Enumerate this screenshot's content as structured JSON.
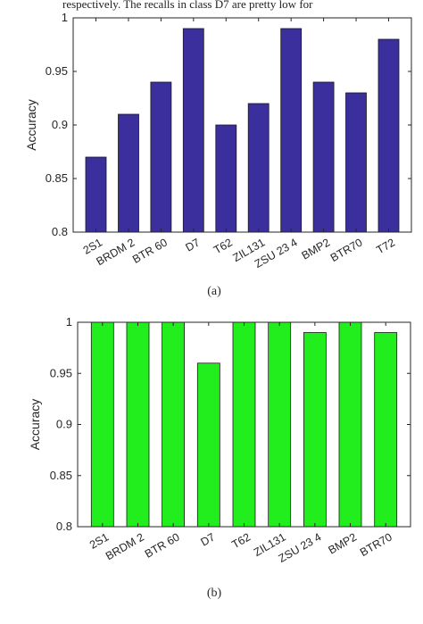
{
  "header_text": "respectively. The recalls in class D7 are pretty low for",
  "chart_data": [
    {
      "type": "bar",
      "caption": "(a)",
      "ylabel": "Accuracy",
      "ylim": [
        0.8,
        1.0
      ],
      "yticks": [
        "0.8",
        "0.85",
        "0.9",
        "0.95",
        "1"
      ],
      "categories": [
        "2S1",
        "BRDM 2",
        "BTR 60",
        "D7",
        "T62",
        "ZIL131",
        "ZSU 23 4",
        "BMP2",
        "BTR70",
        "T72"
      ],
      "values": [
        0.87,
        0.91,
        0.94,
        0.99,
        0.9,
        0.92,
        0.99,
        0.94,
        0.93,
        0.98
      ],
      "bar_color": "#3b2f9e",
      "grid": false
    },
    {
      "type": "bar",
      "caption": "(b)",
      "ylabel": "Accuracy",
      "ylim": [
        0.8,
        1.0
      ],
      "yticks": [
        "0.8",
        "0.85",
        "0.9",
        "0.95",
        "1"
      ],
      "categories": [
        "2S1",
        "BRDM 2",
        "BTR 60",
        "D7",
        "T62",
        "ZIL131",
        "ZSU 23 4",
        "BMP2",
        "BTR70"
      ],
      "values": [
        1.0,
        1.0,
        1.0,
        0.96,
        1.0,
        1.0,
        0.99,
        1.0,
        0.99
      ],
      "bar_color": "#22ee1e",
      "grid": false
    }
  ]
}
